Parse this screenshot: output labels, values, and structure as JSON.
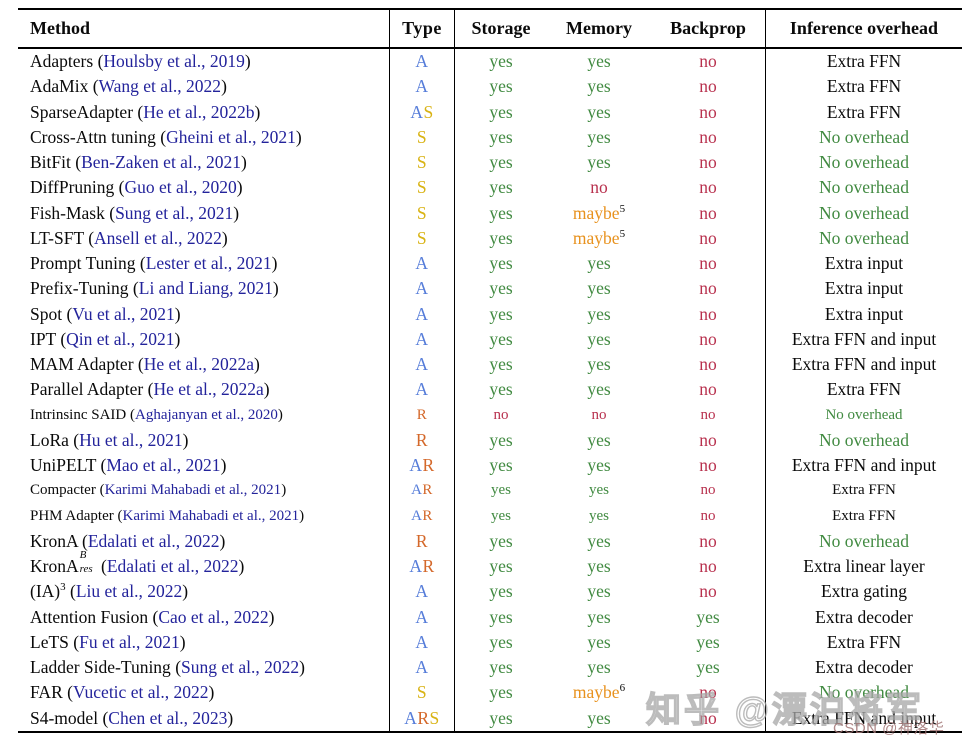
{
  "colors": {
    "text": "#0a0a0a",
    "citation": "#23239B",
    "type_a": "#557CD9",
    "type_s": "#D9B314",
    "type_r": "#D4682A",
    "yes": "#418A41",
    "no": "#B8314E",
    "maybe": "#E8921E",
    "no_overhead": "#418A41",
    "rule": "#000000"
  },
  "watermarks": {
    "zhihu": "知乎 @漂泊将军",
    "csdn": "CSDN @神洛华"
  },
  "table": {
    "headers": [
      "Method",
      "Type",
      "Storage",
      "Memory",
      "Backprop",
      "Inference overhead"
    ],
    "rows": [
      {
        "method": "Adapters",
        "citation": "Houlsby et al., 2019",
        "type": "A",
        "storage": "yes",
        "memory": "yes",
        "backprop": "no",
        "overhead": "Extra FFN",
        "overhead_green": false,
        "small": false
      },
      {
        "method": "AdaMix",
        "citation": "Wang et al., 2022",
        "type": "A",
        "storage": "yes",
        "memory": "yes",
        "backprop": "no",
        "overhead": "Extra FFN",
        "overhead_green": false,
        "small": false
      },
      {
        "method": "SparseAdapter",
        "citation": "He et al., 2022b",
        "type": "AS",
        "storage": "yes",
        "memory": "yes",
        "backprop": "no",
        "overhead": "Extra FFN",
        "overhead_green": false,
        "small": false
      },
      {
        "method": "Cross-Attn tuning",
        "citation": "Gheini et al., 2021",
        "type": "S",
        "storage": "yes",
        "memory": "yes",
        "backprop": "no",
        "overhead": "No overhead",
        "overhead_green": true,
        "small": false
      },
      {
        "method": "BitFit",
        "citation": "Ben-Zaken et al., 2021",
        "type": "S",
        "storage": "yes",
        "memory": "yes",
        "backprop": "no",
        "overhead": "No overhead",
        "overhead_green": true,
        "small": false
      },
      {
        "method": "DiffPruning",
        "citation": "Guo et al., 2020",
        "type": "S",
        "storage": "yes",
        "memory": "no",
        "backprop": "no",
        "overhead": "No overhead",
        "overhead_green": true,
        "small": false
      },
      {
        "method": "Fish-Mask",
        "citation": "Sung et al., 2021",
        "type": "S",
        "storage": "yes",
        "memory": "maybe",
        "memory_sup": "5",
        "backprop": "no",
        "overhead": "No overhead",
        "overhead_green": true,
        "small": false
      },
      {
        "method": "LT-SFT",
        "citation": "Ansell et al., 2022",
        "type": "S",
        "storage": "yes",
        "memory": "maybe",
        "memory_sup": "5",
        "backprop": "no",
        "overhead": "No overhead",
        "overhead_green": true,
        "small": false
      },
      {
        "method": "Prompt Tuning",
        "citation": "Lester et al., 2021",
        "type": "A",
        "storage": "yes",
        "memory": "yes",
        "backprop": "no",
        "overhead": "Extra input",
        "overhead_green": false,
        "small": false
      },
      {
        "method": "Prefix-Tuning",
        "citation": "Li and Liang, 2021",
        "type": "A",
        "storage": "yes",
        "memory": "yes",
        "backprop": "no",
        "overhead": "Extra input",
        "overhead_green": false,
        "small": false
      },
      {
        "method": "Spot",
        "citation": "Vu et al., 2021",
        "type": "A",
        "storage": "yes",
        "memory": "yes",
        "backprop": "no",
        "overhead": "Extra input",
        "overhead_green": false,
        "small": false
      },
      {
        "method": "IPT",
        "citation": "Qin et al., 2021",
        "type": "A",
        "storage": "yes",
        "memory": "yes",
        "backprop": "no",
        "overhead": "Extra FFN and input",
        "overhead_green": false,
        "small": false
      },
      {
        "method": "MAM Adapter",
        "citation": "He et al., 2022a",
        "type": "A",
        "storage": "yes",
        "memory": "yes",
        "backprop": "no",
        "overhead": "Extra FFN and input",
        "overhead_green": false,
        "small": false
      },
      {
        "method": "Parallel Adapter",
        "citation": "He et al., 2022a",
        "type": "A",
        "storage": "yes",
        "memory": "yes",
        "backprop": "no",
        "overhead": "Extra FFN",
        "overhead_green": false,
        "small": false
      },
      {
        "method": "Intrinsinc SAID",
        "citation": "Aghajanyan et al., 2020",
        "type": "R",
        "storage": "no",
        "memory": "no",
        "backprop": "no",
        "overhead": "No overhead",
        "overhead_green": true,
        "small": true
      },
      {
        "method": "LoRa",
        "citation": "Hu et al., 2021",
        "type": "R",
        "storage": "yes",
        "memory": "yes",
        "backprop": "no",
        "overhead": "No overhead",
        "overhead_green": true,
        "small": false
      },
      {
        "method": "UniPELT",
        "citation": "Mao et al., 2021",
        "type": "AR",
        "storage": "yes",
        "memory": "yes",
        "backprop": "no",
        "overhead": "Extra FFN and input",
        "overhead_green": false,
        "small": false
      },
      {
        "method": "Compacter",
        "citation": "Karimi Mahabadi et al., 2021",
        "type": "AR",
        "storage": "yes",
        "memory": "yes",
        "backprop": "no",
        "overhead": "Extra FFN",
        "overhead_green": false,
        "small": true
      },
      {
        "method": "PHM Adapter",
        "citation": "Karimi Mahabadi et al., 2021",
        "type": "AR",
        "storage": "yes",
        "memory": "yes",
        "backprop": "no",
        "overhead": "Extra FFN",
        "overhead_green": false,
        "small": true
      },
      {
        "method": "KronA",
        "citation": "Edalati et al., 2022",
        "type": "R",
        "storage": "yes",
        "memory": "yes",
        "backprop": "no",
        "overhead": "No overhead",
        "overhead_green": true,
        "small": false
      },
      {
        "method": "KronA",
        "method_sup": "B",
        "method_sub": "res",
        "citation": "Edalati et al., 2022",
        "type": "AR",
        "storage": "yes",
        "memory": "yes",
        "backprop": "no",
        "overhead": "Extra linear layer",
        "overhead_green": false,
        "small": false
      },
      {
        "method": "(IA)",
        "method_sup": "3",
        "citation": "Liu et al., 2022",
        "type": "A",
        "storage": "yes",
        "memory": "yes",
        "backprop": "no",
        "overhead": "Extra gating",
        "overhead_green": false,
        "small": false
      },
      {
        "method": "Attention Fusion",
        "citation": "Cao et al., 2022",
        "type": "A",
        "storage": "yes",
        "memory": "yes",
        "backprop": "yes",
        "overhead": "Extra decoder",
        "overhead_green": false,
        "small": false
      },
      {
        "method": "LeTS",
        "citation": "Fu et al., 2021",
        "type": "A",
        "storage": "yes",
        "memory": "yes",
        "backprop": "yes",
        "overhead": "Extra FFN",
        "overhead_green": false,
        "small": false
      },
      {
        "method": "Ladder Side-Tuning",
        "citation": "Sung et al., 2022",
        "type": "A",
        "storage": "yes",
        "memory": "yes",
        "backprop": "yes",
        "overhead": "Extra decoder",
        "overhead_green": false,
        "small": false
      },
      {
        "method": "FAR",
        "citation": "Vucetic et al., 2022",
        "type": "S",
        "storage": "yes",
        "memory": "maybe",
        "memory_sup": "6",
        "backprop": "no",
        "overhead": "No overhead",
        "overhead_green": true,
        "small": false
      },
      {
        "method": "S4-model",
        "citation": "Chen et al., 2023",
        "type": "ARS",
        "storage": "yes",
        "memory": "yes",
        "backprop": "no",
        "overhead": "Extra FFN and input",
        "overhead_green": false,
        "small": false
      }
    ]
  }
}
